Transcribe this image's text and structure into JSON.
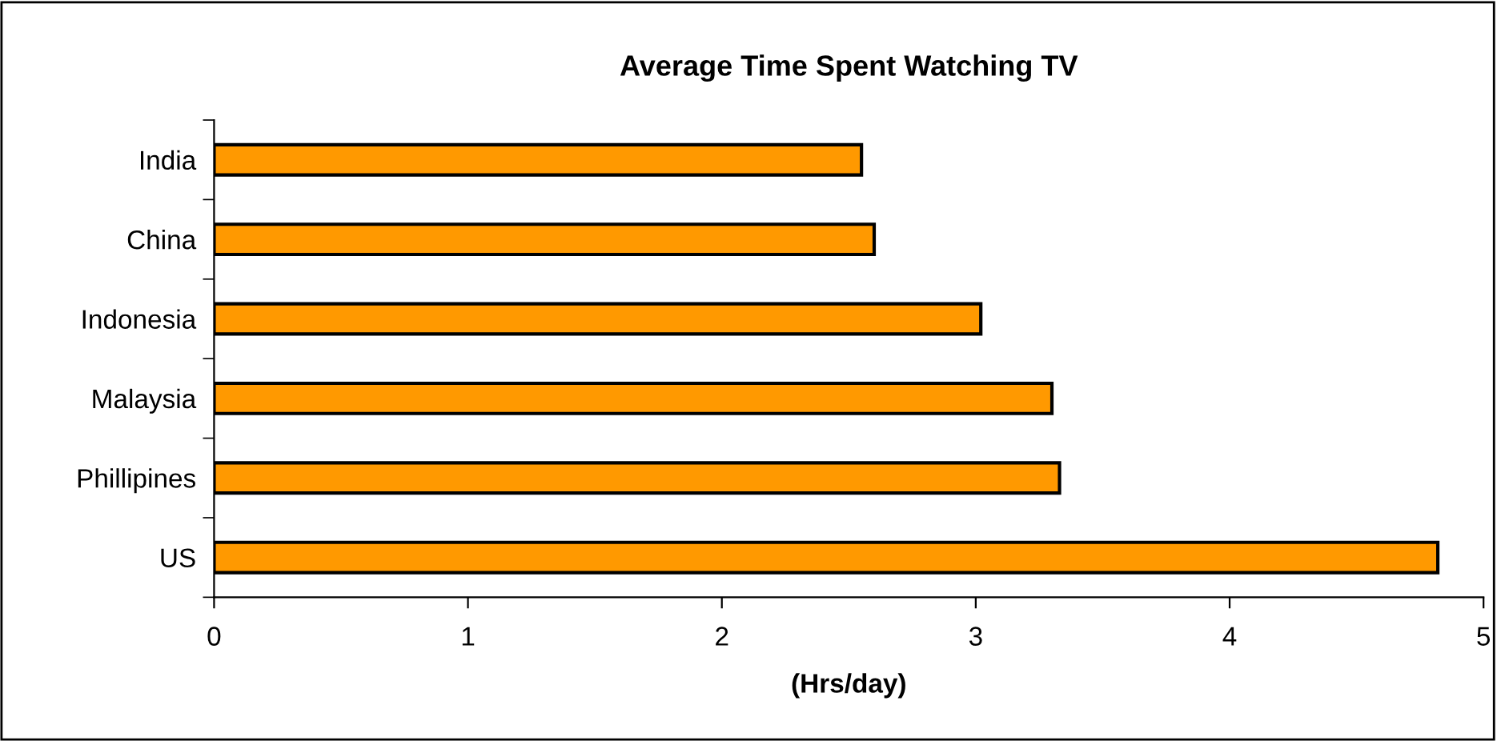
{
  "chart_data": {
    "type": "bar",
    "orientation": "horizontal",
    "title": "Average Time Spent Watching TV",
    "xlabel": "(Hrs/day)",
    "categories": [
      "India",
      "China",
      "Indonesia",
      "Malaysia",
      "Phillipines",
      "US"
    ],
    "values": [
      2.55,
      2.6,
      3.02,
      3.3,
      3.33,
      4.82
    ],
    "color": "#ff9900",
    "xlim": [
      0,
      5
    ],
    "xticks": [
      0,
      1,
      2,
      3,
      4,
      5
    ],
    "grid": false,
    "legend": false
  }
}
